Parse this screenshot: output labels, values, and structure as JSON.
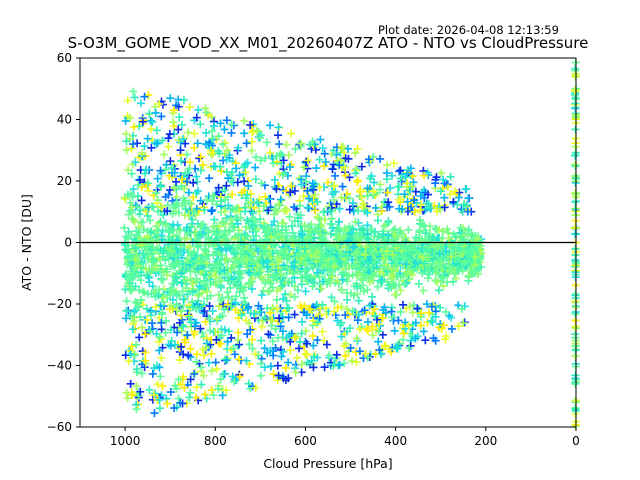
{
  "header": {
    "plot_date": "Plot date: 2026-04-08 12:13:59"
  },
  "chart_data": {
    "type": "scatter",
    "title": "S-O3M_GOME_VOD_XX_M01_20260407Z ATO - NTO vs CloudPressure",
    "xlabel": "Cloud Pressure [hPa]",
    "ylabel": "ATO - NTO [DU]",
    "xlim": [
      1100,
      0
    ],
    "ylim": [
      -60,
      60
    ],
    "xticks": [
      1000,
      800,
      600,
      400,
      200,
      0
    ],
    "yticks": [
      -60,
      -40,
      -20,
      0,
      20,
      40,
      60
    ],
    "reference_line_y": 0,
    "marker": "+",
    "color_palette": [
      "#0a2be8",
      "#0077ff",
      "#00b3f2",
      "#1ddde0",
      "#33f0b8",
      "#5cff9a",
      "#a8ff5a",
      "#e8ff2a",
      "#ffee00"
    ],
    "grid": false,
    "legend": "none",
    "point_clusters": [
      {
        "name": "main cloud",
        "x_range": [
          1000,
          220
        ],
        "y_center": -4,
        "y_spread": 9,
        "count": 2200,
        "dominant_color": "#5cff9a"
      },
      {
        "name": "upper scatter",
        "x_range": [
          1000,
          230
        ],
        "y_range": [
          10,
          55
        ],
        "count": 650
      },
      {
        "name": "lower scatter",
        "x_range": [
          1000,
          240
        ],
        "y_range": [
          -58,
          -20
        ],
        "count": 600
      },
      {
        "name": "zero pressure column",
        "x": 0,
        "y_range": [
          -60,
          60
        ],
        "count": 120
      }
    ]
  }
}
